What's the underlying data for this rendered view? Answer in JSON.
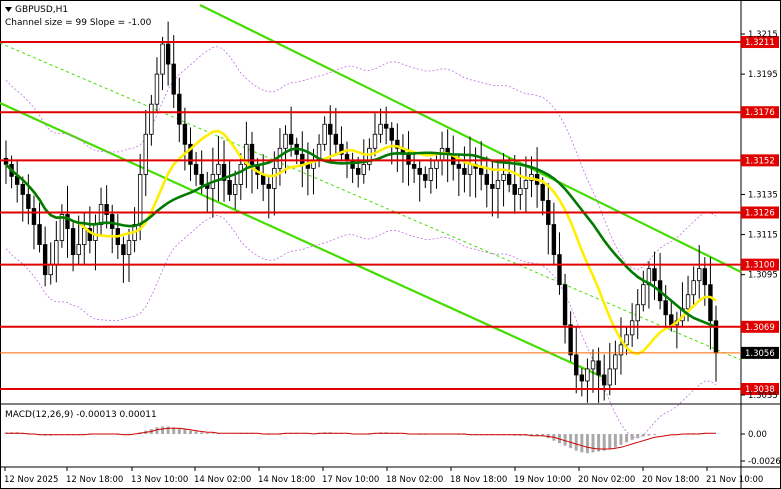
{
  "window": {
    "symbol_title": "GBPUSD,H1",
    "indicator_caption": "Channel size = 99 Slope = -1.00",
    "macd_caption": "MACD(12,26,9) -0.00013 0.00011"
  },
  "colors": {
    "background": "#ffffff",
    "candles": "#000000",
    "level_lines": "#e00000",
    "price_line": "#ff6a00",
    "channel": "#44dd00",
    "ma_fast": "#ffee00",
    "ma_slow": "#007a00",
    "envelope": "#c070e0",
    "macd_hist": "#a9a9a9",
    "macd_signal": "#d00000"
  },
  "chart_data": {
    "type": "candlestick",
    "symbol": "GBPUSD",
    "timeframe": "H1",
    "x_labels": [
      "12 Nov 2025",
      "12 Nov 18:00",
      "13 Nov 10:00",
      "14 Nov 02:00",
      "14 Nov 18:00",
      "17 Nov 10:00",
      "18 Nov 02:00",
      "18 Nov 18:00",
      "19 Nov 10:00",
      "20 Nov 02:00",
      "20 Nov 18:00",
      "21 Nov 10:00"
    ],
    "price_ticks": [
      1.3215,
      1.3195,
      1.3135,
      1.3115,
      1.3095,
      1.3035
    ],
    "ylim": [
      1.3035,
      1.322
    ],
    "levels": [
      {
        "price": "1.3211",
        "value": 1.3211
      },
      {
        "price": "1.3176",
        "value": 1.3176
      },
      {
        "price": "1.3152",
        "value": 1.3152
      },
      {
        "price": "1.3126",
        "value": 1.3126
      },
      {
        "price": "1.3100",
        "value": 1.31
      },
      {
        "price": "1.3069",
        "value": 1.3069
      },
      {
        "price": "1.3038",
        "value": 1.3038
      }
    ],
    "current_price": {
      "price": "1.3056",
      "value": 1.3056
    },
    "macd_ticks": [
      "0.00",
      "-0.00264"
    ],
    "macd_ylim": [
      -0.00264,
      0.0
    ],
    "closes": [
      1.315,
      1.3144,
      1.314,
      1.3135,
      1.3128,
      1.312,
      1.311,
      1.3095,
      1.31,
      1.3112,
      1.3125,
      1.3118,
      1.3105,
      1.311,
      1.3118,
      1.3112,
      1.312,
      1.313,
      1.3125,
      1.3118,
      1.311,
      1.3105,
      1.3112,
      1.312,
      1.3145,
      1.3165,
      1.318,
      1.3195,
      1.321,
      1.32,
      1.3185,
      1.317,
      1.316,
      1.315,
      1.3145,
      1.314,
      1.3138,
      1.3145,
      1.315,
      1.3142,
      1.3135,
      1.314,
      1.315,
      1.316,
      1.315,
      1.3145,
      1.314,
      1.3138,
      1.3148,
      1.3158,
      1.3165,
      1.316,
      1.3155,
      1.315,
      1.3148,
      1.3152,
      1.316,
      1.317,
      1.3165,
      1.316,
      1.3155,
      1.3152,
      1.3148,
      1.3145,
      1.315,
      1.3158,
      1.3165,
      1.317,
      1.3168,
      1.3162,
      1.3158,
      1.3155,
      1.315,
      1.3148,
      1.3145,
      1.3142,
      1.3148,
      1.3152,
      1.3158,
      1.3155,
      1.315,
      1.3148,
      1.3145,
      1.315,
      1.3148,
      1.3145,
      1.314,
      1.3138,
      1.3142,
      1.3145,
      1.314,
      1.3135,
      1.3138,
      1.3142,
      1.3145,
      1.314,
      1.3132,
      1.312,
      1.3105,
      1.309,
      1.307,
      1.3055,
      1.3045,
      1.3042,
      1.3048,
      1.3052,
      1.3045,
      1.304,
      1.3048,
      1.3055,
      1.306,
      1.3065,
      1.3072,
      1.308,
      1.309,
      1.3098,
      1.3092,
      1.3082,
      1.3075,
      1.307,
      1.3072,
      1.3078,
      1.3085,
      1.3092,
      1.3098,
      1.309,
      1.3072,
      1.3056
    ],
    "macd_hist": [
      0.0002,
      0.0002,
      0.0002,
      0.0001,
      0.0001,
      0.0,
      -0.0001,
      -0.0002,
      -0.0002,
      -0.0001,
      -0.0001,
      -0.0001,
      -0.0001,
      -0.0001,
      -0.0001,
      -0.0001,
      0.0,
      0.0,
      0.0,
      0.0,
      -0.0001,
      -0.0001,
      -0.0001,
      0.0,
      0.0002,
      0.0004,
      0.0006,
      0.0008,
      0.0009,
      0.0009,
      0.0008,
      0.0007,
      0.0006,
      0.0004,
      0.0003,
      0.0002,
      0.0001,
      0.0001,
      0.0001,
      0.0,
      0.0,
      0.0,
      0.0001,
      0.0001,
      0.0001,
      0.0,
      0.0,
      -0.0001,
      0.0,
      0.0001,
      0.0001,
      0.0001,
      0.0001,
      0.0,
      0.0,
      0.0,
      0.0001,
      0.0002,
      0.0002,
      0.0001,
      0.0001,
      0.0,
      0.0,
      0.0,
      0.0,
      0.0001,
      0.0001,
      0.0002,
      0.0002,
      0.0001,
      0.0001,
      0.0,
      0.0,
      0.0,
      -0.0001,
      -0.0001,
      0.0,
      0.0,
      0.0,
      0.0,
      0.0,
      -0.0001,
      -0.0001,
      -0.0001,
      -0.0001,
      -0.0001,
      -0.0001,
      -0.0001,
      -0.0001,
      -0.0001,
      -0.0001,
      -0.0002,
      -0.0002,
      -0.0002,
      -0.0002,
      -0.0002,
      -0.0003,
      -0.0005,
      -0.0008,
      -0.0011,
      -0.0014,
      -0.0017,
      -0.002,
      -0.0022,
      -0.0023,
      -0.0022,
      -0.0021,
      -0.002,
      -0.0018,
      -0.0016,
      -0.0013,
      -0.001,
      -0.0007,
      -0.0005,
      -0.0003,
      -0.0002,
      -0.0001,
      0.0,
      0.0,
      0.0,
      0.0,
      0.0,
      0.0001,
      0.0001,
      0.0001,
      0.0001,
      0.0,
      0.0
    ],
    "macd_signal": [
      0.0001,
      0.0001,
      0.0001,
      0.0001,
      0.0,
      0.0,
      -0.0001,
      -0.0001,
      -0.0001,
      -0.0001,
      -0.0001,
      -0.0001,
      -0.0001,
      -0.0001,
      -0.0001,
      0.0,
      0.0,
      0.0,
      0.0,
      0.0,
      0.0,
      -0.0001,
      -0.0001,
      0.0,
      0.0001,
      0.0002,
      0.0003,
      0.0005,
      0.0006,
      0.0007,
      0.0007,
      0.0007,
      0.0006,
      0.0005,
      0.0004,
      0.0003,
      0.0002,
      0.0002,
      0.0001,
      0.0001,
      0.0001,
      0.0001,
      0.0001,
      0.0001,
      0.0001,
      0.0001,
      0.0,
      0.0,
      0.0,
      0.0,
      0.0001,
      0.0001,
      0.0001,
      0.0001,
      0.0001,
      0.0,
      0.0001,
      0.0001,
      0.0001,
      0.0001,
      0.0001,
      0.0001,
      0.0,
      0.0,
      0.0,
      0.0,
      0.0001,
      0.0001,
      0.0001,
      0.0001,
      0.0001,
      0.0001,
      0.0,
      0.0,
      0.0,
      0.0,
      0.0,
      0.0,
      0.0,
      0.0,
      0.0,
      0.0,
      0.0,
      -0.0001,
      -0.0001,
      -0.0001,
      -0.0001,
      -0.0001,
      -0.0001,
      -0.0001,
      -0.0001,
      -0.0001,
      -0.0001,
      -0.0001,
      -0.0002,
      -0.0002,
      -0.0002,
      -0.0003,
      -0.0004,
      -0.0006,
      -0.0008,
      -0.001,
      -0.0012,
      -0.0014,
      -0.0016,
      -0.0017,
      -0.0018,
      -0.0018,
      -0.0018,
      -0.0017,
      -0.0016,
      -0.0014,
      -0.0012,
      -0.001,
      -0.0008,
      -0.0006,
      -0.0004,
      -0.0003,
      -0.0002,
      -0.0001,
      -0.0001,
      0.0,
      0.0,
      0.0,
      0.0,
      0.0001,
      0.0001,
      0.0001
    ]
  }
}
